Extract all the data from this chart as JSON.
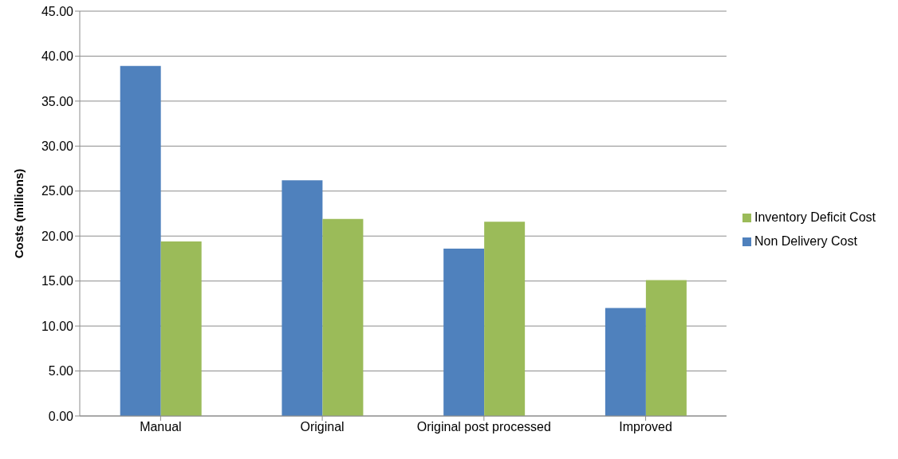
{
  "chart_data": {
    "type": "bar",
    "ylabel": "Costs (millions)",
    "categories": [
      "Manual",
      "Original",
      "Original post processed",
      "Improved"
    ],
    "series": [
      {
        "name": "Non Delivery Cost",
        "color": "#4f81bd",
        "values": [
          38.9,
          26.2,
          18.6,
          12.0
        ]
      },
      {
        "name": "Inventory Deficit Cost",
        "color": "#9bbb59",
        "values": [
          19.4,
          21.9,
          21.6,
          15.1
        ]
      }
    ],
    "ylim": [
      0,
      45
    ],
    "yticks": [
      {
        "value": 0,
        "label": "0.00"
      },
      {
        "value": 5,
        "label": "5.00"
      },
      {
        "value": 10,
        "label": "10.00"
      },
      {
        "value": 15,
        "label": "15.00"
      },
      {
        "value": 20,
        "label": "20.00"
      },
      {
        "value": 25,
        "label": "25.00"
      },
      {
        "value": 30,
        "label": "30.00"
      },
      {
        "value": 35,
        "label": "35.00"
      },
      {
        "value": 40,
        "label": "40.00"
      },
      {
        "value": 45,
        "label": "45.00"
      }
    ],
    "grid": "y",
    "legend": "right"
  }
}
